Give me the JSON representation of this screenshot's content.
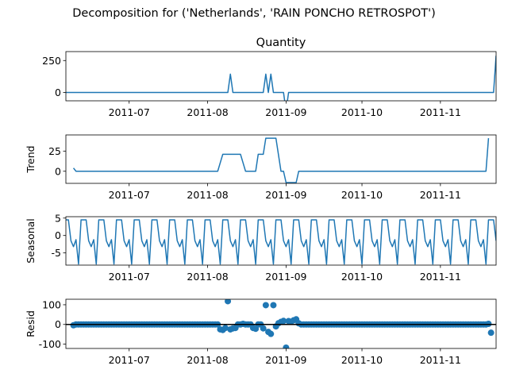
{
  "figure": {
    "suptitle": "Decomposition for ('Netherlands', 'RAIN PONCHO RETROSPOT')"
  },
  "colors": {
    "line": "#1f77b4",
    "axis": "#000000",
    "background": "#ffffff"
  },
  "chart_data": [
    {
      "type": "line",
      "title": "Quantity",
      "ylabel": "",
      "x_range": [
        "2011-06-06",
        "2011-11-23"
      ],
      "ylim": [
        -65,
        320
      ],
      "yticks": [
        0,
        250
      ],
      "xticks": [
        "2011-07",
        "2011-08",
        "2011-09",
        "2011-10",
        "2011-11"
      ],
      "x": [
        "2011-06-06",
        "2011-06-07",
        "2011-08-09",
        "2011-08-10",
        "2011-08-11",
        "2011-08-23",
        "2011-08-24",
        "2011-08-25",
        "2011-08-26",
        "2011-08-27",
        "2011-08-31",
        "2011-09-01",
        "2011-09-02",
        "2011-09-03",
        "2011-11-22",
        "2011-11-23"
      ],
      "values": [
        0,
        0,
        0,
        144,
        0,
        0,
        144,
        0,
        144,
        0,
        0,
        -144,
        0,
        0,
        0,
        288
      ]
    },
    {
      "type": "line",
      "title": "",
      "ylabel": "Trend",
      "x_range": [
        "2011-06-06",
        "2011-11-23"
      ],
      "ylim": [
        -15,
        45
      ],
      "yticks": [
        0,
        25
      ],
      "xticks": [
        "2011-07",
        "2011-08",
        "2011-09",
        "2011-10",
        "2011-11"
      ],
      "x": [
        "2011-06-09",
        "2011-06-10",
        "2011-08-05",
        "2011-08-07",
        "2011-08-14",
        "2011-08-16",
        "2011-08-20",
        "2011-08-21",
        "2011-08-23",
        "2011-08-24",
        "2011-08-28",
        "2011-08-30",
        "2011-08-31",
        "2011-09-01",
        "2011-09-05",
        "2011-09-06",
        "2011-11-19",
        "2011-11-20"
      ],
      "values": [
        4,
        0,
        0,
        21,
        21,
        0,
        0,
        21,
        21,
        41,
        41,
        0,
        0,
        -14,
        -14,
        0,
        0,
        41
      ]
    },
    {
      "type": "line",
      "title": "",
      "ylabel": "Seasonal",
      "x_range": [
        "2011-06-06",
        "2011-11-23"
      ],
      "ylim": [
        -8.5,
        5.4
      ],
      "yticks": [
        -5,
        0,
        5
      ],
      "xticks": [
        "2011-07",
        "2011-08",
        "2011-09",
        "2011-10",
        "2011-11"
      ],
      "period_days": 7,
      "pattern": [
        4.5,
        4.5,
        -1.5,
        -3.2,
        -1.2,
        -8.2,
        4.5
      ]
    },
    {
      "type": "scatter",
      "title": "",
      "ylabel": "Resid",
      "x_range": [
        "2011-06-06",
        "2011-11-23"
      ],
      "ylim": [
        -122,
        128
      ],
      "yticks": [
        -100,
        0,
        100
      ],
      "xticks": [
        "2011-07",
        "2011-08",
        "2011-09",
        "2011-10",
        "2011-11"
      ],
      "baseline": 0,
      "default_value": 0,
      "outliers": [
        {
          "x": "2011-06-09",
          "y": -4
        },
        {
          "x": "2011-08-06",
          "y": -25
        },
        {
          "x": "2011-08-07",
          "y": -28
        },
        {
          "x": "2011-08-08",
          "y": -18
        },
        {
          "x": "2011-08-09",
          "y": 118
        },
        {
          "x": "2011-08-10",
          "y": -25
        },
        {
          "x": "2011-08-11",
          "y": -20
        },
        {
          "x": "2011-08-12",
          "y": -18
        },
        {
          "x": "2011-08-15",
          "y": 3
        },
        {
          "x": "2011-08-19",
          "y": -18
        },
        {
          "x": "2011-08-20",
          "y": -22
        },
        {
          "x": "2011-08-23",
          "y": -20
        },
        {
          "x": "2011-08-24",
          "y": 98
        },
        {
          "x": "2011-08-25",
          "y": -38
        },
        {
          "x": "2011-08-26",
          "y": -48
        },
        {
          "x": "2011-08-27",
          "y": 98
        },
        {
          "x": "2011-08-28",
          "y": -10
        },
        {
          "x": "2011-08-29",
          "y": 6
        },
        {
          "x": "2011-08-30",
          "y": 13
        },
        {
          "x": "2011-08-31",
          "y": 18
        },
        {
          "x": "2011-09-01",
          "y": -118
        },
        {
          "x": "2011-09-02",
          "y": 17
        },
        {
          "x": "2011-09-03",
          "y": 14
        },
        {
          "x": "2011-09-04",
          "y": 21
        },
        {
          "x": "2011-09-05",
          "y": 26
        },
        {
          "x": "2011-09-06",
          "y": 6
        },
        {
          "x": "2011-11-20",
          "y": 3
        },
        {
          "x": "2011-11-21",
          "y": -42
        }
      ]
    }
  ]
}
